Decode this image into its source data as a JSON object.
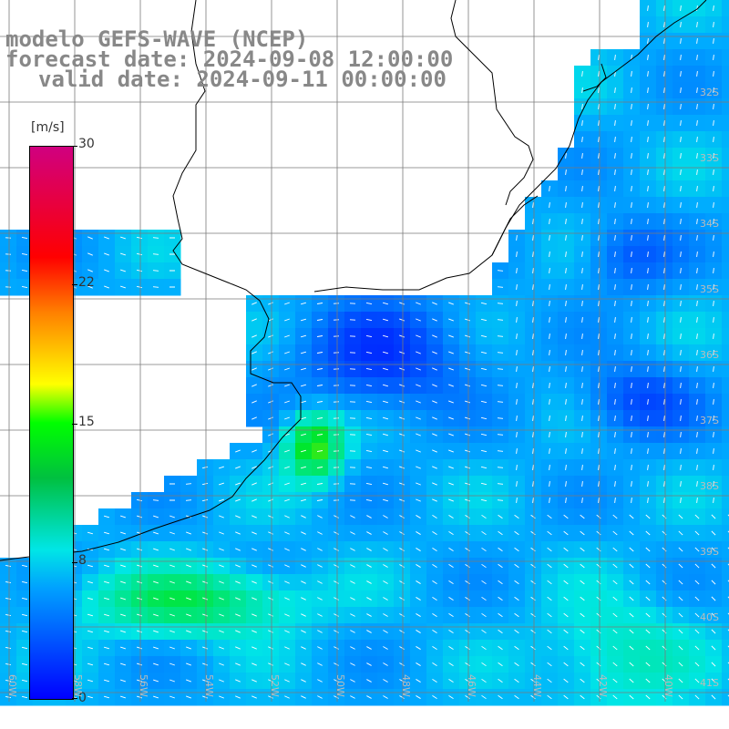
{
  "title": {
    "line1": "modelo GEFS-WAVE (NCEP)",
    "line2": "forecast date: 2024-09-08 12:00:00",
    "line3": "valid date: 2024-09-11 00:00:00"
  },
  "colorbar": {
    "unit": "[m/s]",
    "ticks": [
      "30",
      "22",
      "15",
      "8",
      "0"
    ],
    "tick_values": [
      30,
      22,
      15,
      8,
      0
    ],
    "range": [
      0,
      30
    ]
  },
  "longitude_labels": [
    "60W",
    "58W",
    "56W",
    "54W",
    "52W",
    "50W",
    "48W",
    "46W",
    "44W",
    "42W",
    "40W"
  ],
  "latitude_labels": [
    "32S",
    "33S",
    "34S",
    "35S",
    "36S",
    "37S",
    "38S",
    "39S",
    "40S",
    "41S"
  ],
  "colors": {
    "land": "#ffffff",
    "grid": "#7a7a7a",
    "coast": "#000000",
    "title": "#888888",
    "arrow": "#ffffff"
  }
}
